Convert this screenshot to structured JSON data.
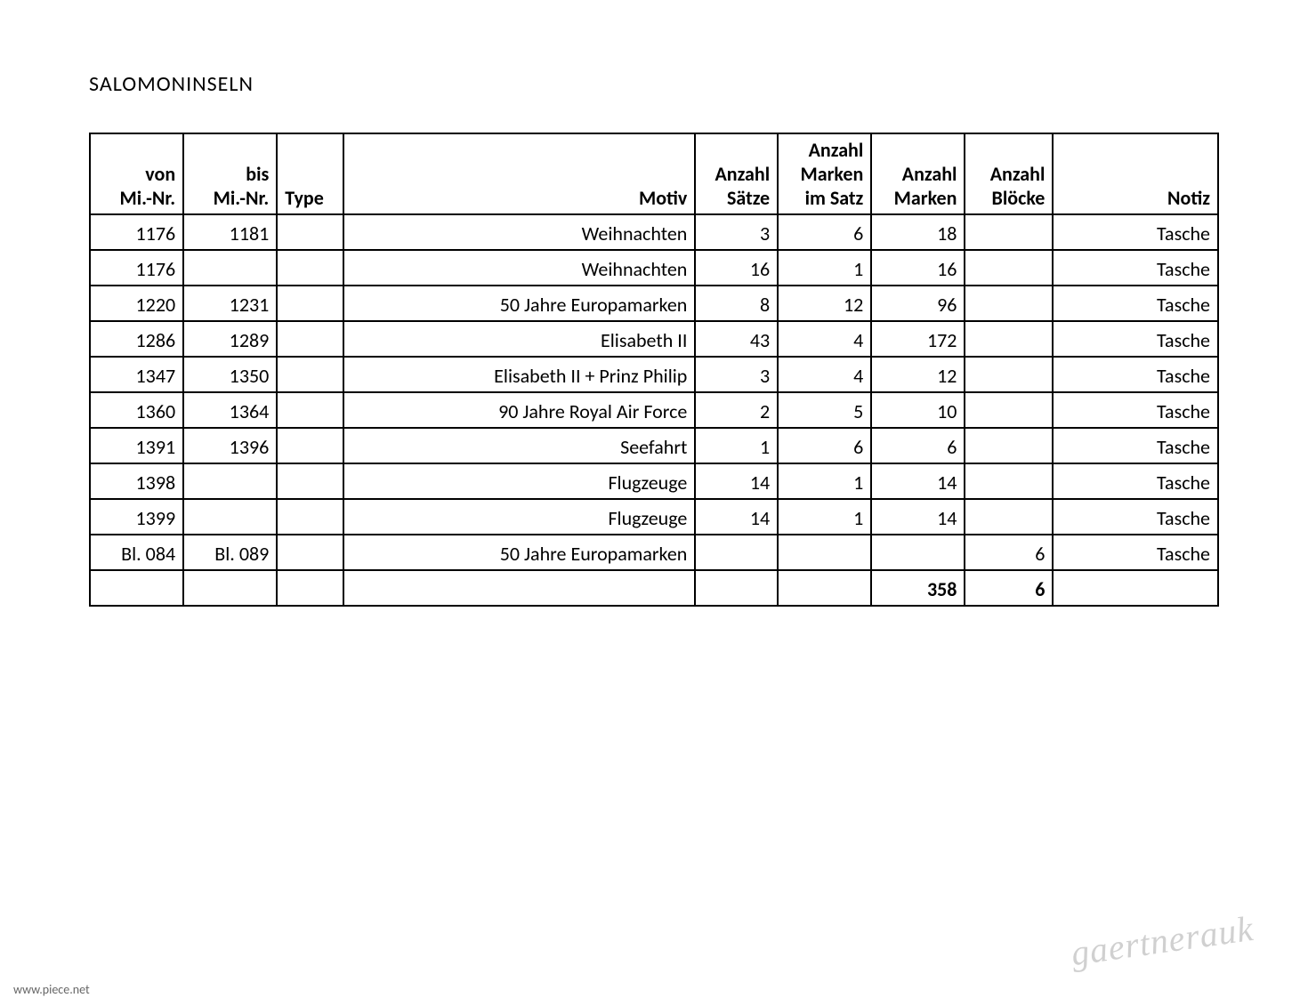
{
  "title": "SALOMONINSELN",
  "table": {
    "columns": [
      {
        "key": "von",
        "label": "von\nMi.-Nr.",
        "align": "right"
      },
      {
        "key": "bis",
        "label": "bis\nMi.-Nr.",
        "align": "right"
      },
      {
        "key": "type",
        "label": "Type",
        "align": "left"
      },
      {
        "key": "motiv",
        "label": "Motiv",
        "align": "right"
      },
      {
        "key": "satze",
        "label": "Anzahl\nSätze",
        "align": "right"
      },
      {
        "key": "imsatz",
        "label": "Anzahl\nMarken\nim Satz",
        "align": "right"
      },
      {
        "key": "marken",
        "label": "Anzahl\nMarken",
        "align": "right"
      },
      {
        "key": "blocke",
        "label": "Anzahl\nBlöcke",
        "align": "right"
      },
      {
        "key": "notiz",
        "label": "Notiz",
        "align": "right"
      }
    ],
    "headers": {
      "von_l1": "von",
      "von_l2": "Mi.-Nr.",
      "bis_l1": "bis",
      "bis_l2": "Mi.-Nr.",
      "type": "Type",
      "motiv": "Motiv",
      "satze_l1": "Anzahl",
      "satze_l2": "Sätze",
      "imsatz_l1": "Anzahl",
      "imsatz_l2": "Marken",
      "imsatz_l3": "im Satz",
      "marken_l1": "Anzahl",
      "marken_l2": "Marken",
      "blocke_l1": "Anzahl",
      "blocke_l2": "Blöcke",
      "notiz": "Notiz"
    },
    "rows": [
      {
        "von": "1176",
        "bis": "1181",
        "type": "",
        "motiv": "Weihnachten",
        "satze": "3",
        "imsatz": "6",
        "marken": "18",
        "blocke": "",
        "notiz": "Tasche"
      },
      {
        "von": "1176",
        "bis": "",
        "type": "",
        "motiv": "Weihnachten",
        "satze": "16",
        "imsatz": "1",
        "marken": "16",
        "blocke": "",
        "notiz": "Tasche"
      },
      {
        "von": "1220",
        "bis": "1231",
        "type": "",
        "motiv": "50 Jahre Europamarken",
        "satze": "8",
        "imsatz": "12",
        "marken": "96",
        "blocke": "",
        "notiz": "Tasche"
      },
      {
        "von": "1286",
        "bis": "1289",
        "type": "",
        "motiv": "Elisabeth II",
        "satze": "43",
        "imsatz": "4",
        "marken": "172",
        "blocke": "",
        "notiz": "Tasche"
      },
      {
        "von": "1347",
        "bis": "1350",
        "type": "",
        "motiv": "Elisabeth II + Prinz Philip",
        "satze": "3",
        "imsatz": "4",
        "marken": "12",
        "blocke": "",
        "notiz": "Tasche"
      },
      {
        "von": "1360",
        "bis": "1364",
        "type": "",
        "motiv": "90 Jahre Royal Air Force",
        "satze": "2",
        "imsatz": "5",
        "marken": "10",
        "blocke": "",
        "notiz": "Tasche"
      },
      {
        "von": "1391",
        "bis": "1396",
        "type": "",
        "motiv": "Seefahrt",
        "satze": "1",
        "imsatz": "6",
        "marken": "6",
        "blocke": "",
        "notiz": "Tasche"
      },
      {
        "von": "1398",
        "bis": "",
        "type": "",
        "motiv": "Flugzeuge",
        "satze": "14",
        "imsatz": "1",
        "marken": "14",
        "blocke": "",
        "notiz": "Tasche"
      },
      {
        "von": "1399",
        "bis": "",
        "type": "",
        "motiv": "Flugzeuge",
        "satze": "14",
        "imsatz": "1",
        "marken": "14",
        "blocke": "",
        "notiz": "Tasche"
      },
      {
        "von": "Bl. 084",
        "bis": "Bl. 089",
        "type": "",
        "motiv": "50 Jahre Europamarken",
        "satze": "",
        "imsatz": "",
        "marken": "",
        "blocke": "6",
        "notiz": "Tasche"
      }
    ],
    "totals": {
      "marken": "358",
      "blocke": "6"
    }
  },
  "watermark": "gaertnerauk",
  "footer": "www.piece.net",
  "styling": {
    "background_color": "#ffffff",
    "text_color": "#000000",
    "border_color": "#000000",
    "font_family": "Calibri, Arial, sans-serif",
    "title_fontsize": 24,
    "cell_fontsize": 22,
    "watermark_color": "rgba(120,120,120,0.35)",
    "border_width": 2
  }
}
